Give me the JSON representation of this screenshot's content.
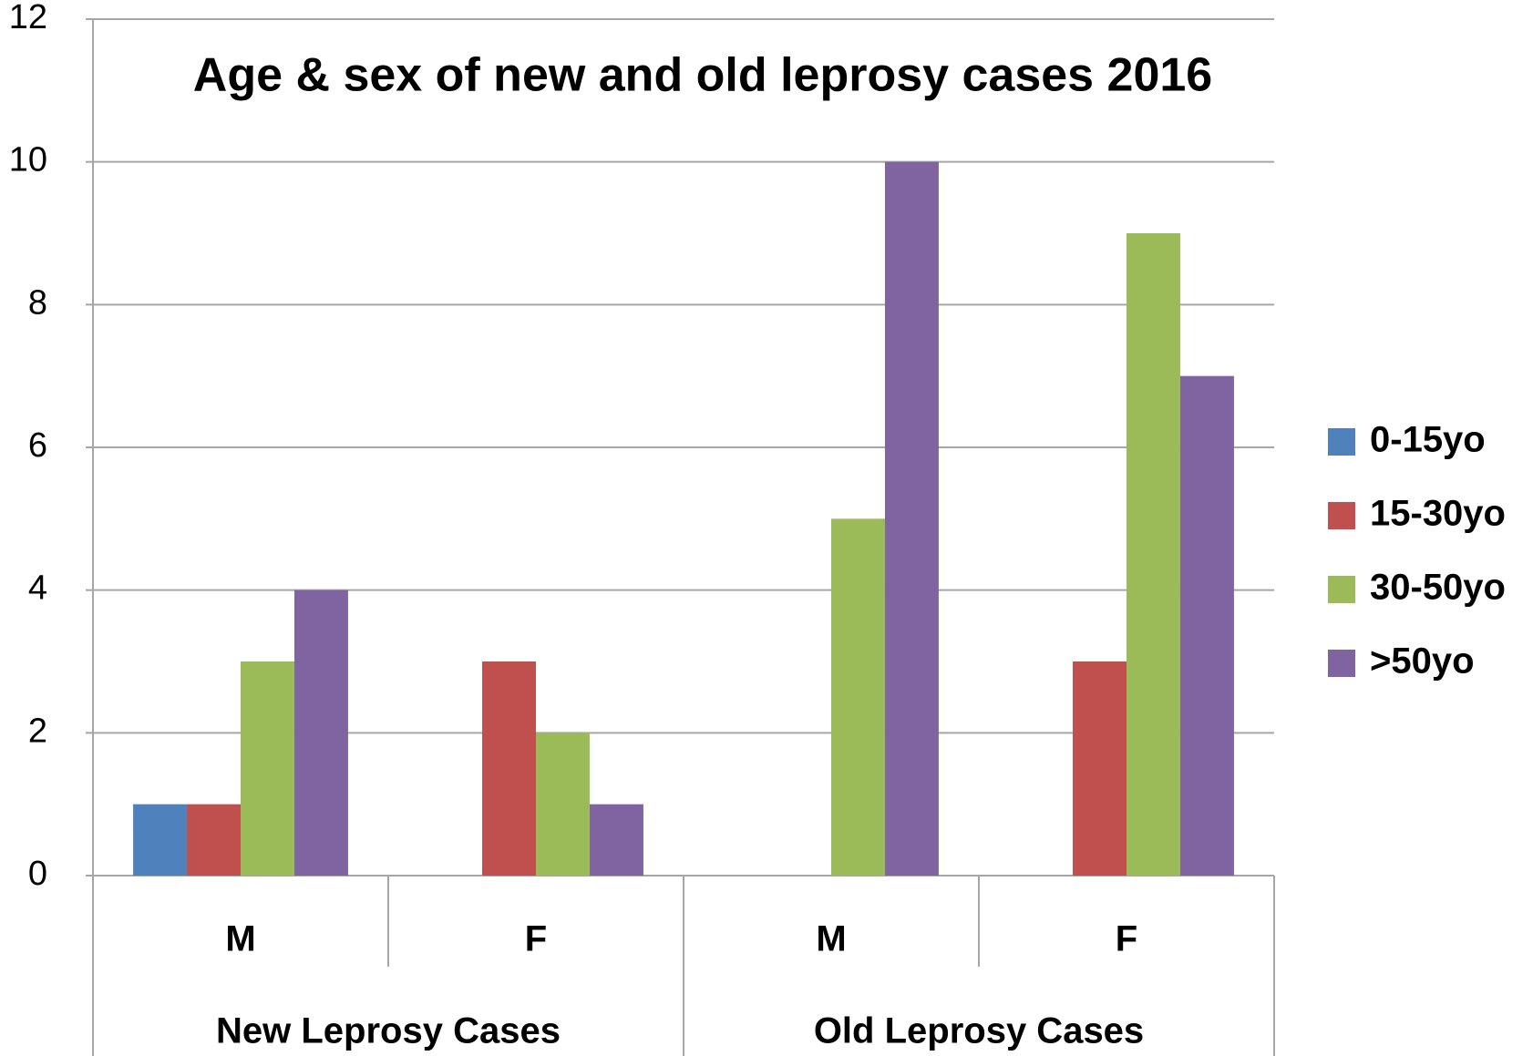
{
  "chart_data": {
    "type": "bar",
    "title": "Age & sex of new and old leprosy cases 2016",
    "categories": [
      "M",
      "F",
      "M",
      "F"
    ],
    "group_labels": [
      "New Leprosy Cases",
      "Old Leprosy Cases"
    ],
    "series": [
      {
        "name": "0-15yo",
        "color": "#4f81bd",
        "values": [
          1,
          0,
          0,
          0
        ]
      },
      {
        "name": "15-30yo",
        "color": "#c0504d",
        "values": [
          1,
          3,
          0,
          3
        ]
      },
      {
        "name": "30-50yo",
        "color": "#9bbb59",
        "values": [
          3,
          2,
          5,
          9
        ]
      },
      {
        "name": ">50yo",
        "color": "#8064a2",
        "values": [
          4,
          1,
          10,
          7
        ]
      }
    ],
    "ylim": [
      0,
      12
    ],
    "yticks": [
      0,
      2,
      4,
      6,
      8,
      10,
      12
    ],
    "grid": true,
    "legend": "right"
  }
}
